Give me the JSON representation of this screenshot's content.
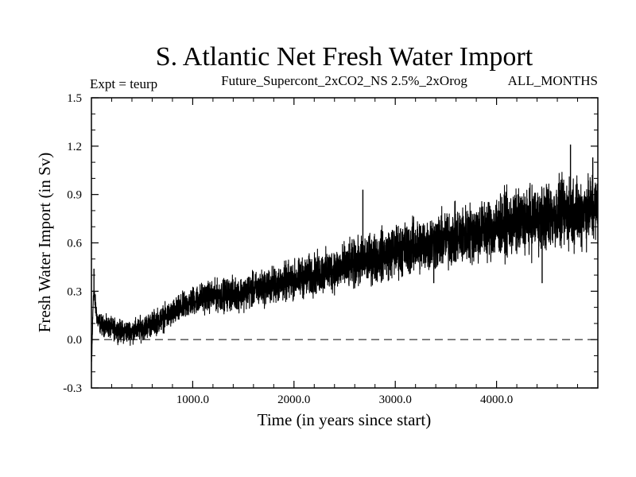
{
  "chart_data": {
    "type": "line",
    "title": "S. Atlantic Net Fresh Water Import",
    "subtitle_left": "Expt = teurp",
    "subtitle_center": "Future_Supercont_2xCO2_NS 2.5%_2xOrog",
    "subtitle_right": "ALL_MONTHS",
    "xlabel": "Time (in years since start)",
    "ylabel": "Fresh Water Import (in Sv)",
    "xlim": [
      0,
      5000
    ],
    "ylim": [
      -0.3,
      1.5
    ],
    "xticks": [
      1000,
      2000,
      3000,
      4000
    ],
    "xtick_labels": [
      "1000.0",
      "2000.0",
      "3000.0",
      "4000.0"
    ],
    "yticks": [
      -0.3,
      0.0,
      0.3,
      0.6,
      0.9,
      1.2,
      1.5
    ],
    "ytick_labels": [
      "-0.3",
      "0.0",
      "0.3",
      "0.6",
      "0.9",
      "1.2",
      "1.5"
    ],
    "reference_line": {
      "y": 0.0,
      "style": "dashed"
    },
    "grid": false,
    "line_color": "#000000",
    "series": [
      {
        "trend": {
          "x": [
            0,
            20,
            60,
            100,
            200,
            300,
            400,
            500,
            600,
            700,
            800,
            900,
            1000,
            1100,
            1200,
            1500,
            2000,
            2500,
            3000,
            3500,
            4000,
            4500,
            5000
          ],
          "y": [
            -0.2,
            0.3,
            0.12,
            0.09,
            0.07,
            0.05,
            0.05,
            0.07,
            0.1,
            0.13,
            0.16,
            0.2,
            0.24,
            0.26,
            0.27,
            0.29,
            0.37,
            0.45,
            0.55,
            0.62,
            0.7,
            0.76,
            0.82
          ]
        },
        "spread": {
          "x": [
            0,
            1000,
            2000,
            3000,
            4000,
            5000
          ],
          "y": [
            0.04,
            0.06,
            0.08,
            0.11,
            0.13,
            0.15
          ]
        },
        "spikes": {
          "x": [
            25,
            4730,
            4450,
            3380,
            4950,
            2680
          ],
          "y": [
            0.44,
            1.21,
            0.35,
            0.35,
            1.13,
            0.93
          ]
        }
      }
    ]
  }
}
